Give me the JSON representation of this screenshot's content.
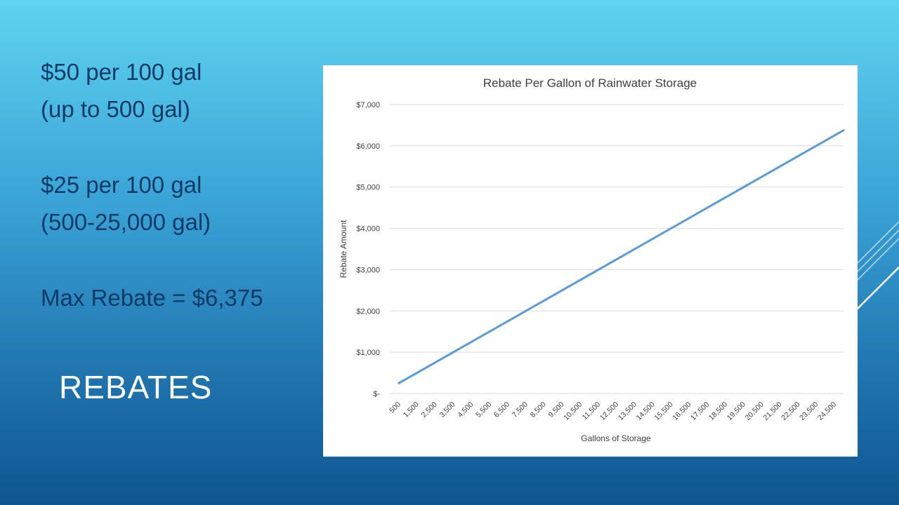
{
  "slide": {
    "title": "REBATES",
    "lines": [
      "$50 per 100 gal",
      "(up to 500 gal)",
      "$25 per 100 gal",
      "(500-25,000 gal)",
      "Max Rebate = $6,375"
    ]
  },
  "colors": {
    "line": "#5b9bd5",
    "accent_text": "#0b3a66",
    "title": "#ffffff"
  },
  "chart_data": {
    "type": "line",
    "title": "Rebate Per Gallon of Rainwater Storage",
    "xlabel": "Gallons of Storage",
    "ylabel": "Rebate Amount",
    "ylim": [
      0,
      7000
    ],
    "y_ticks": [
      0,
      1000,
      2000,
      3000,
      4000,
      5000,
      6000,
      7000
    ],
    "y_tick_labels": [
      "$-",
      "$1,000",
      "$2,000",
      "$3,000",
      "$4,000",
      "$5,000",
      "$6,000",
      "$7,000"
    ],
    "x_tick_labels": [
      "500",
      "1,500",
      "2,500",
      "3,500",
      "4,500",
      "5,500",
      "6,500",
      "7,500",
      "8,500",
      "9,500",
      "10,500",
      "11,500",
      "12,500",
      "13,500",
      "14,500",
      "15,500",
      "16,500",
      "17,500",
      "18,500",
      "19,500",
      "20,500",
      "21,500",
      "22,500",
      "23,500",
      "24,500"
    ],
    "grid": true,
    "legend": "none",
    "series": [
      {
        "x": [
          500,
          25000
        ],
        "values": [
          250,
          6375
        ]
      }
    ]
  }
}
